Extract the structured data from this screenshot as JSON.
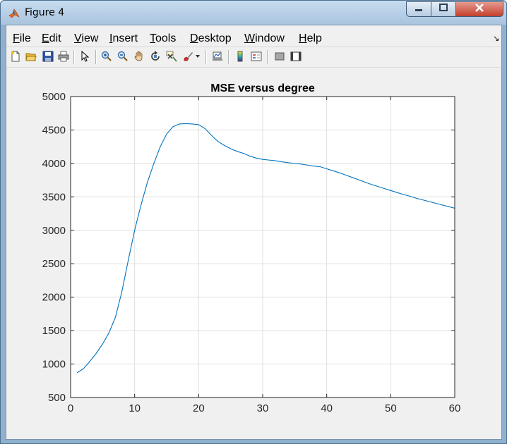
{
  "window": {
    "title": "Figure 4"
  },
  "menu": {
    "items": [
      {
        "label": "File",
        "key": "F",
        "rest": "ile"
      },
      {
        "label": "Edit",
        "key": "E",
        "rest": "dit"
      },
      {
        "label": "View",
        "key": "V",
        "rest": "iew"
      },
      {
        "label": "Insert",
        "key": "I",
        "rest": "nsert"
      },
      {
        "label": "Tools",
        "key": "T",
        "rest": "ools"
      },
      {
        "label": "Desktop",
        "key": "D",
        "rest": "esktop"
      },
      {
        "label": "Window",
        "key": "W",
        "rest": "indow"
      },
      {
        "label": "Help",
        "key": "H",
        "rest": "elp"
      }
    ]
  },
  "toolbar": {
    "tools": [
      "new-figure-icon",
      "open-file-icon",
      "save-icon",
      "print-icon",
      "edit-plot-arrow-icon",
      "zoom-in-icon",
      "zoom-out-icon",
      "pan-hand-icon",
      "rotate-3d-icon",
      "data-cursor-icon",
      "brush-icon",
      "brush-dropdown-icon",
      "link-plot-icon",
      "insert-colorbar-icon",
      "insert-legend-icon",
      "hide-plot-tools-icon",
      "show-plot-tools-icon"
    ]
  },
  "colors": {
    "line": "#0072bd",
    "grid": "#dfdfdf",
    "axes_bg": "#ffffff",
    "figure_bg": "#f0f0f0"
  },
  "chart_data": {
    "type": "line",
    "title": "MSE versus degree",
    "xlabel": "",
    "ylabel": "",
    "xlim": [
      0,
      60
    ],
    "ylim": [
      500,
      5000
    ],
    "xticks": [
      0,
      10,
      20,
      30,
      40,
      50,
      60
    ],
    "yticks": [
      500,
      1000,
      1500,
      2000,
      2500,
      3000,
      3500,
      4000,
      4500,
      5000
    ],
    "grid": true,
    "series": [
      {
        "x": [
          1,
          2,
          3,
          4,
          5,
          6,
          7,
          8,
          9,
          10,
          11,
          12,
          13,
          14,
          15,
          16,
          17,
          18,
          19,
          20,
          21,
          22,
          23,
          24,
          25,
          26,
          27,
          28,
          29,
          30,
          31,
          32,
          33,
          34,
          35,
          36,
          37,
          38,
          39,
          40,
          41,
          42,
          43,
          44,
          45,
          46,
          47,
          48,
          49,
          50,
          51,
          52,
          53,
          54,
          55,
          56,
          57,
          58,
          59,
          60
        ],
        "y": [
          870,
          930,
          1040,
          1160,
          1300,
          1470,
          1700,
          2080,
          2550,
          3000,
          3380,
          3720,
          4000,
          4250,
          4440,
          4550,
          4590,
          4595,
          4590,
          4580,
          4520,
          4420,
          4330,
          4270,
          4220,
          4180,
          4150,
          4110,
          4080,
          4060,
          4050,
          4040,
          4025,
          4010,
          4000,
          3990,
          3975,
          3960,
          3950,
          3920,
          3890,
          3860,
          3825,
          3790,
          3755,
          3720,
          3685,
          3655,
          3625,
          3595,
          3565,
          3535,
          3510,
          3480,
          3455,
          3430,
          3405,
          3380,
          3355,
          3330
        ]
      }
    ]
  }
}
